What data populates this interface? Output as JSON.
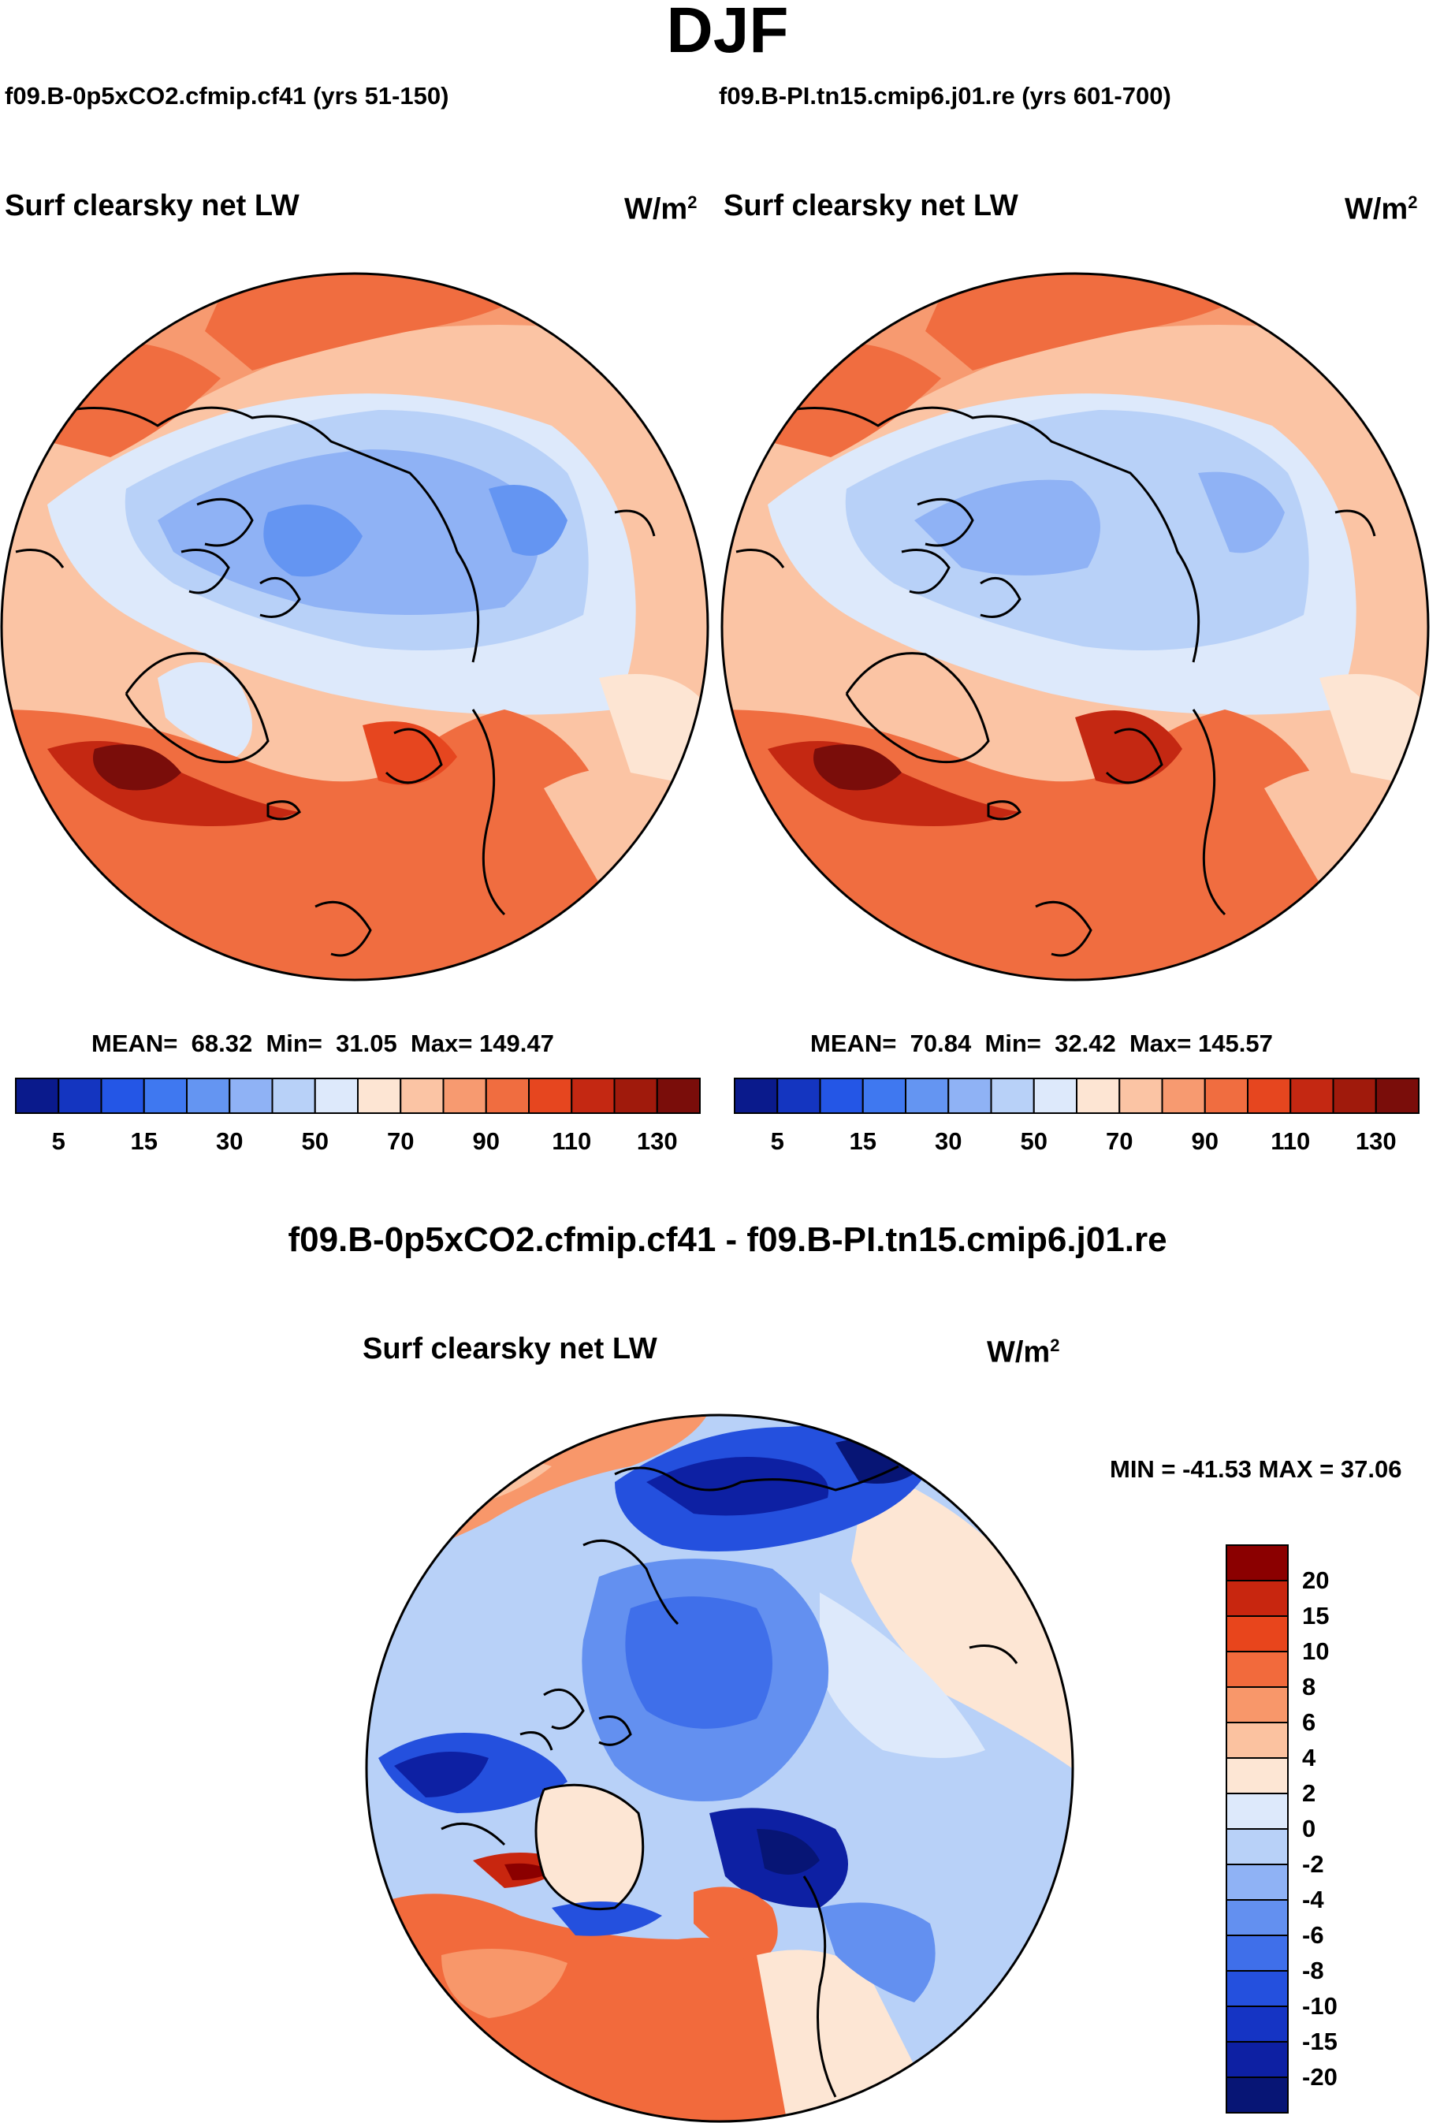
{
  "title": "DJF",
  "panel_left": {
    "experiment": "f09.B-0p5xCO2.cfmip.cf41 (yrs 51-150)",
    "variable": "Surf clearsky net LW",
    "units": "W/m",
    "units_sup": "2",
    "mean_label": "MEAN=",
    "mean": "68.32",
    "min_label": "Min=",
    "min": "31.05",
    "max_label": "Max=",
    "max": "149.47"
  },
  "panel_right": {
    "experiment": "f09.B-PI.tn15.cmip6.j01.re (yrs 601-700)",
    "variable": "Surf clearsky net LW",
    "units": "W/m",
    "units_sup": "2",
    "mean_label": "MEAN=",
    "mean": "70.84",
    "min_label": "Min=",
    "min": "32.42",
    "max_label": "Max=",
    "max": "145.57"
  },
  "panel_diff": {
    "title": "f09.B-0p5xCO2.cfmip.cf41 - f09.B-PI.tn15.cmip6.j01.re",
    "variable": "Surf clearsky net LW",
    "units": "W/m",
    "units_sup": "2",
    "minmax": "MIN = -41.53 MAX =  37.06"
  },
  "abs_colorbar": {
    "colors": [
      "#0a1a8c",
      "#1435c0",
      "#2456e6",
      "#3f78f0",
      "#6495f2",
      "#8fb2f5",
      "#b8d1f8",
      "#dde9fb",
      "#fde5d3",
      "#fbc4a4",
      "#f79a70",
      "#f06d40",
      "#e6461f",
      "#c42812",
      "#a01a0c",
      "#7a0d0a"
    ],
    "labels": [
      "5",
      "15",
      "30",
      "50",
      "70",
      "90",
      "110",
      "130"
    ]
  },
  "diff_colorbar": {
    "colors": [
      "#8b0000",
      "#c8260f",
      "#e8451c",
      "#f26a3c",
      "#f8976a",
      "#fbc2a0",
      "#fde6d4",
      "#dde9fb",
      "#b8d1f8",
      "#8fb2f5",
      "#6390f0",
      "#3f6fea",
      "#2450de",
      "#1534c4",
      "#0d20a3",
      "#071575"
    ],
    "labels": [
      "20",
      "15",
      "10",
      "8",
      "6",
      "4",
      "2",
      "0",
      "-2",
      "-4",
      "-6",
      "-8",
      "-10",
      "-15",
      "-20"
    ]
  }
}
